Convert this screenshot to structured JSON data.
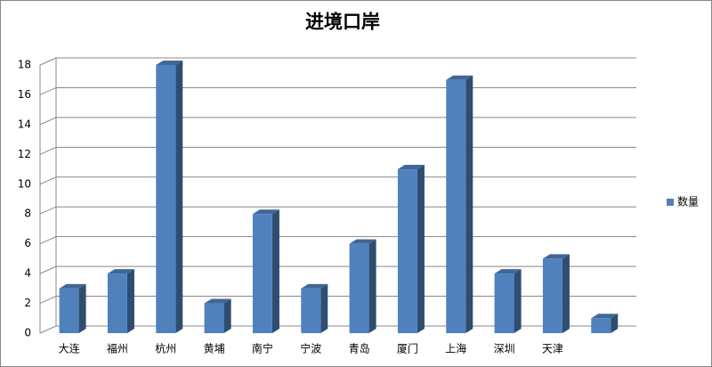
{
  "chart_data": {
    "type": "bar3d",
    "title": "进境口岸",
    "categories": [
      "大连",
      "福州",
      "杭州",
      "黄埔",
      "南宁",
      "宁波",
      "青岛",
      "厦门",
      "上海",
      "深圳",
      "天津",
      null
    ],
    "series": [
      {
        "name": "数量",
        "color": "#4f81bd",
        "values": [
          3,
          4,
          18,
          2,
          8,
          3,
          6,
          11,
          17,
          4,
          5,
          1
        ]
      }
    ],
    "ylim": [
      0,
      18
    ],
    "yticks": [
      0,
      2,
      4,
      6,
      8,
      10,
      12,
      14,
      16,
      18
    ],
    "grid": true,
    "legend": "right"
  }
}
